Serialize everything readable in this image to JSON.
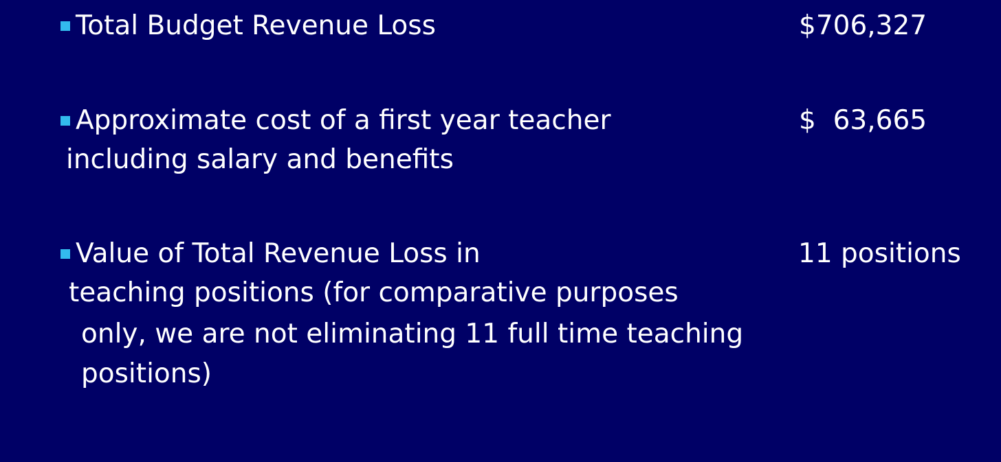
{
  "items": [
    {
      "lines": [
        "Total Budget Revenue Loss"
      ],
      "value": "$706,327"
    },
    {
      "lines": [
        "Approximate cost of a first year teacher",
        "including salary and benefits"
      ],
      "value": "$  63,665"
    },
    {
      "lines": [
        "Value of Total Revenue Loss in",
        "teaching positions (for comparative purposes",
        "only, we are not eliminating 11 full time teaching",
        "positions)"
      ],
      "value": "11 positions"
    }
  ]
}
